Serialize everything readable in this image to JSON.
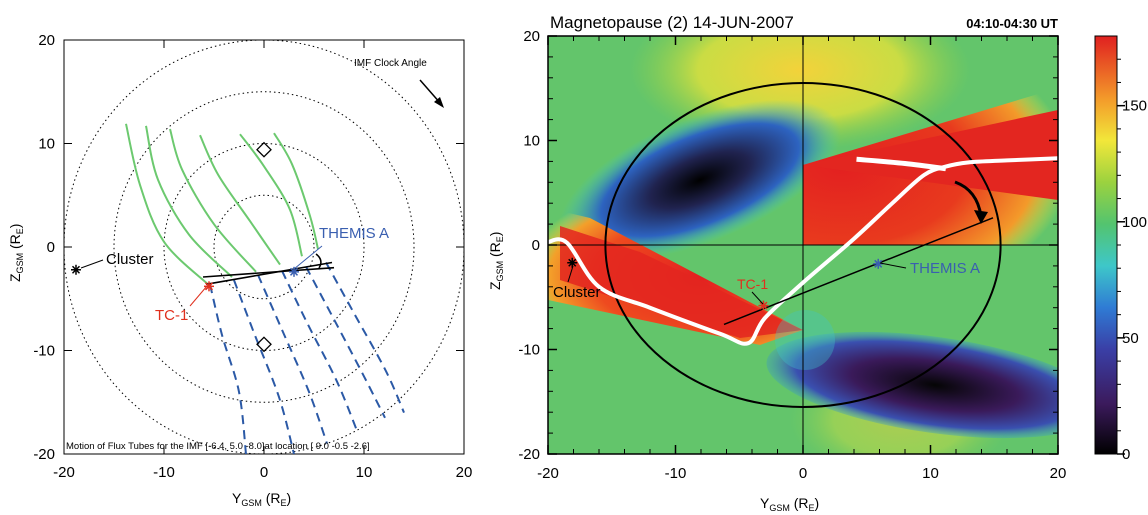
{
  "left_panel": {
    "ylabel": "Z",
    "ylabel_sub": "GSM",
    "ylabel_unit": "(R",
    "ylabel_unit_sub": "E",
    "ylabel_close": ")",
    "xlabel": "Y",
    "xlabel_sub": "GSM",
    "xlabel_unit": "(R",
    "xlabel_unit_sub": "E",
    "xlabel_close": ")",
    "clock_angle_label": "IMF Clock Angle",
    "caption": "Motion of Flux Tubes for the IMF [-6.4, 5.0 -8.0]at location [ 9.0 -0.5 -2.6]",
    "labels": {
      "cluster": "Cluster",
      "themis": "THEMIS A",
      "tc1": "TC-1"
    }
  },
  "right_panel": {
    "title": "Magnetopause (2) 14-JUN-2007",
    "time_range": "04:10-04:30 UT",
    "ylabel": "Z",
    "ylabel_sub": "GSM",
    "ylabel_unit": "(R",
    "ylabel_unit_sub": "E",
    "ylabel_close": ")",
    "xlabel": "Y",
    "xlabel_sub": "GSM",
    "xlabel_unit": "(R",
    "xlabel_unit_sub": "E",
    "xlabel_close": ")",
    "labels": {
      "cluster": "Cluster",
      "themis": "THEMIS A",
      "tc1": "TC-1"
    }
  },
  "colors": {
    "green_field": "#6cc96f",
    "dashed_blue": "#2b59a6",
    "cluster": "#000000",
    "tc1": "#e0301e",
    "themis": "#3a5fb0"
  },
  "chart_data": [
    {
      "type": "scatter",
      "panel": "flux-tube-projection",
      "xlim": [
        -20,
        20
      ],
      "ylim": [
        -20,
        20
      ],
      "x_ticks": [
        -20,
        -10,
        0,
        10,
        20
      ],
      "y_ticks": [
        -20,
        -10,
        0,
        10,
        20
      ],
      "ring_radii": [
        5,
        10,
        15,
        20
      ],
      "green_field_lines": [
        [
          [
            -13.8,
            11.9
          ],
          [
            -12.4,
            6.0
          ],
          [
            -10.0,
            0.5
          ],
          [
            -5.6,
            -3.6
          ]
        ],
        [
          [
            -11.8,
            11.7
          ],
          [
            -10.6,
            6.5
          ],
          [
            -7.5,
            1.2
          ],
          [
            -3.2,
            -2.9
          ]
        ],
        [
          [
            -9.4,
            11.4
          ],
          [
            -8.2,
            7.5
          ],
          [
            -5.0,
            2.2
          ],
          [
            -0.8,
            -2.4
          ]
        ],
        [
          [
            -6.4,
            10.8
          ],
          [
            -4.6,
            7.0
          ],
          [
            -1.4,
            2.5
          ],
          [
            1.6,
            -1.7
          ]
        ],
        [
          [
            -2.4,
            10.9
          ],
          [
            0.0,
            7.8
          ],
          [
            2.6,
            3.6
          ],
          [
            3.8,
            -0.9
          ]
        ],
        [
          [
            1.0,
            11.0
          ],
          [
            2.8,
            8.0
          ],
          [
            4.6,
            3.0
          ],
          [
            5.4,
            -0.2
          ]
        ]
      ],
      "dashed_blue_lines": [
        [
          [
            -5.4,
            -3.6
          ],
          [
            -4.2,
            -8.5
          ],
          [
            -2.5,
            -14.0
          ],
          [
            -1.8,
            -20.0
          ]
        ],
        [
          [
            -3.0,
            -3.2
          ],
          [
            -1.0,
            -8.3
          ],
          [
            1.5,
            -14.5
          ],
          [
            3.0,
            -20.0
          ]
        ],
        [
          [
            -0.6,
            -2.7
          ],
          [
            1.8,
            -8.0
          ],
          [
            4.5,
            -14.0
          ],
          [
            6.3,
            -19.0
          ]
        ],
        [
          [
            1.8,
            -2.3
          ],
          [
            4.4,
            -7.5
          ],
          [
            7.3,
            -13.0
          ],
          [
            9.4,
            -18.0
          ]
        ],
        [
          [
            4.2,
            -1.9
          ],
          [
            7.0,
            -7.0
          ],
          [
            10.0,
            -12.5
          ],
          [
            12.1,
            -16.5
          ]
        ],
        [
          [
            6.2,
            -1.5
          ],
          [
            9.0,
            -6.4
          ],
          [
            12.2,
            -12.0
          ],
          [
            14.0,
            -16.0
          ]
        ]
      ],
      "reconnection_lines": [
        [
          [
            -6.1,
            -2.9
          ],
          [
            7.0,
            -2.0
          ]
        ],
        [
          [
            -5.8,
            -3.6
          ],
          [
            6.8,
            -1.5
          ]
        ]
      ],
      "diamonds": [
        [
          0.0,
          9.4
        ],
        [
          0.0,
          -9.4
        ]
      ],
      "spacecraft": [
        {
          "name": "Cluster",
          "y": -18.8,
          "z": -2.2
        },
        {
          "name": "THEMIS A",
          "y": 3.0,
          "z": -2.4
        },
        {
          "name": "TC-1",
          "y": -5.5,
          "z": -3.8
        }
      ]
    },
    {
      "type": "heatmap",
      "panel": "magnetopause-shear-angle",
      "title": "Magnetopause (2) 14-JUN-2007",
      "xlim": [
        -20,
        20
      ],
      "ylim": [
        -20,
        20
      ],
      "x_ticks": [
        -20,
        -10,
        0,
        10,
        20
      ],
      "y_ticks": [
        -20,
        -10,
        0,
        10,
        20
      ],
      "colorbar": {
        "range": [
          0,
          180
        ],
        "ticks": [
          0,
          50,
          100,
          150
        ]
      },
      "magnetopause_radius": 15.5,
      "white_curve": [
        [
          -20.0,
          0.3
        ],
        [
          -18.5,
          0.2
        ],
        [
          -16.0,
          -4.0
        ],
        [
          -12.0,
          -6.0
        ],
        [
          -6.5,
          -8.5
        ],
        [
          -4.3,
          -9.4
        ],
        [
          -3.0,
          -7.0
        ],
        [
          0.0,
          -3.6
        ],
        [
          4.0,
          0.6
        ],
        [
          7.0,
          4.0
        ],
        [
          9.5,
          6.7
        ],
        [
          11.2,
          7.5
        ],
        [
          13.0,
          7.9
        ],
        [
          16.0,
          8.1
        ],
        [
          20.0,
          8.3
        ]
      ],
      "white_upper_segment": [
        [
          4.2,
          8.2
        ],
        [
          8.0,
          7.8
        ],
        [
          11.2,
          7.3
        ]
      ],
      "black_line": [
        [
          -6.2,
          -7.6
        ],
        [
          14.9,
          2.6
        ]
      ],
      "spacecraft": [
        {
          "name": "Cluster",
          "y": -18.1,
          "z": -1.7
        },
        {
          "name": "TC-1",
          "y": -3.1,
          "z": -5.8
        },
        {
          "name": "THEMIS A",
          "y": 5.9,
          "z": -1.8
        }
      ]
    }
  ]
}
